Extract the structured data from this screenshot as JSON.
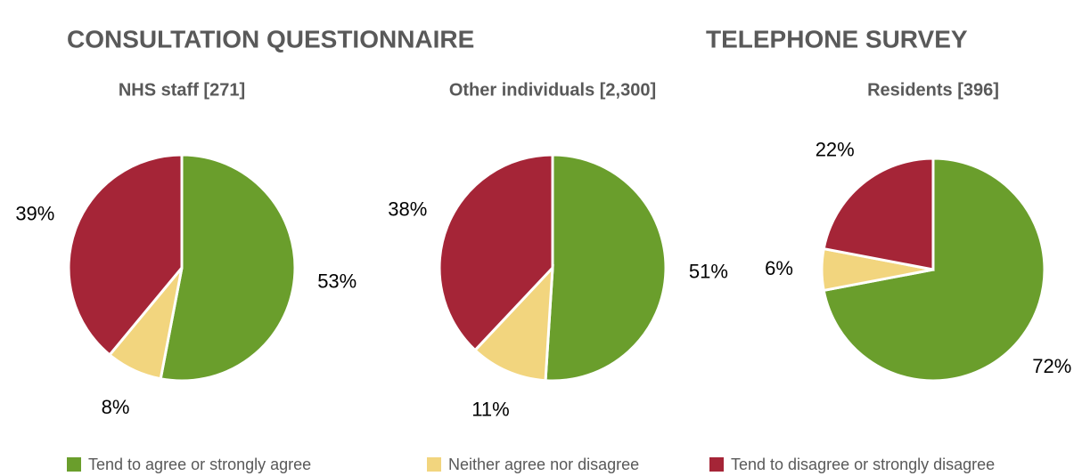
{
  "headings": [
    "CONSULTATION QUESTIONNAIRE",
    "TELEPHONE SURVEY"
  ],
  "chart_data": [
    {
      "type": "pie",
      "title": "NHS staff [271]",
      "categories": [
        "Tend to agree or strongly agree",
        "Neither agree nor disagree",
        "Tend to disagree or strongly disagree"
      ],
      "values": [
        53,
        8,
        39
      ],
      "value_labels": [
        "53%",
        "8%",
        "39%"
      ],
      "colors": [
        "#6a9e2c",
        "#f2d57e",
        "#a52537"
      ]
    },
    {
      "type": "pie",
      "title": "Other individuals [2,300]",
      "categories": [
        "Tend to agree or strongly agree",
        "Neither agree nor disagree",
        "Tend to disagree or strongly disagree"
      ],
      "values": [
        51,
        11,
        38
      ],
      "value_labels": [
        "51%",
        "11%",
        "38%"
      ],
      "colors": [
        "#6a9e2c",
        "#f2d57e",
        "#a52537"
      ]
    },
    {
      "type": "pie",
      "title": "Residents [396]",
      "categories": [
        "Tend to agree or strongly agree",
        "Neither agree nor disagree",
        "Tend to disagree or strongly disagree"
      ],
      "values": [
        72,
        6,
        22
      ],
      "value_labels": [
        "72%",
        "6%",
        "22%"
      ],
      "colors": [
        "#6a9e2c",
        "#f2d57e",
        "#a52537"
      ]
    }
  ]
}
